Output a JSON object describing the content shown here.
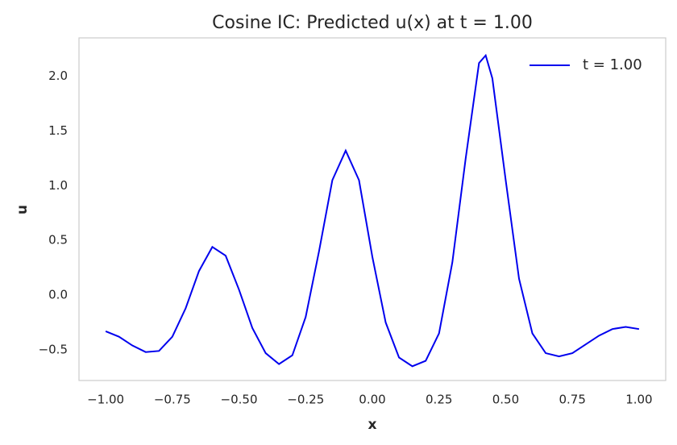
{
  "chart_data": {
    "type": "line",
    "title": "Cosine IC: Predicted u(x) at t = 1.00",
    "x_label": "x",
    "y_label": "u",
    "x": [
      -1.0,
      -0.95,
      -0.9,
      -0.85,
      -0.8,
      -0.75,
      -0.7,
      -0.65,
      -0.6,
      -0.55,
      -0.5,
      -0.45,
      -0.4,
      -0.35,
      -0.3,
      -0.25,
      -0.2,
      -0.15,
      -0.1,
      -0.05,
      0.0,
      0.05,
      0.1,
      0.15,
      0.2,
      0.25,
      0.3,
      0.35,
      0.4,
      0.425,
      0.45,
      0.5,
      0.55,
      0.6,
      0.65,
      0.7,
      0.75,
      0.8,
      0.85,
      0.9,
      0.95,
      1.0
    ],
    "series": [
      {
        "name": "t = 1.00",
        "color": "#0000ee",
        "values": [
          -0.33,
          -0.38,
          -0.46,
          -0.52,
          -0.51,
          -0.38,
          -0.12,
          0.22,
          0.44,
          0.36,
          0.05,
          -0.3,
          -0.53,
          -0.63,
          -0.55,
          -0.2,
          0.4,
          1.05,
          1.32,
          1.05,
          0.35,
          -0.25,
          -0.57,
          -0.65,
          -0.6,
          -0.35,
          0.3,
          1.25,
          2.12,
          2.19,
          1.98,
          1.05,
          0.15,
          -0.35,
          -0.53,
          -0.56,
          -0.53,
          -0.45,
          -0.37,
          -0.31,
          -0.29,
          -0.31
        ]
      }
    ],
    "xlim": [
      -1.1,
      1.1
    ],
    "ylim": [
      -0.78,
      2.35
    ],
    "xticks": [
      {
        "value": -1.0,
        "label": "−1.00"
      },
      {
        "value": -0.75,
        "label": "−0.75"
      },
      {
        "value": -0.5,
        "label": "−0.50"
      },
      {
        "value": -0.25,
        "label": "−0.25"
      },
      {
        "value": 0.0,
        "label": "0.00"
      },
      {
        "value": 0.25,
        "label": "0.25"
      },
      {
        "value": 0.5,
        "label": "0.50"
      },
      {
        "value": 0.75,
        "label": "0.75"
      },
      {
        "value": 1.0,
        "label": "1.00"
      }
    ],
    "yticks": [
      {
        "value": -0.5,
        "label": "−0.5"
      },
      {
        "value": 0.0,
        "label": "0.0"
      },
      {
        "value": 0.5,
        "label": "0.5"
      },
      {
        "value": 1.0,
        "label": "1.0"
      },
      {
        "value": 1.5,
        "label": "1.5"
      },
      {
        "value": 2.0,
        "label": "2.0"
      }
    ],
    "grid": false,
    "legend": "upper right"
  }
}
